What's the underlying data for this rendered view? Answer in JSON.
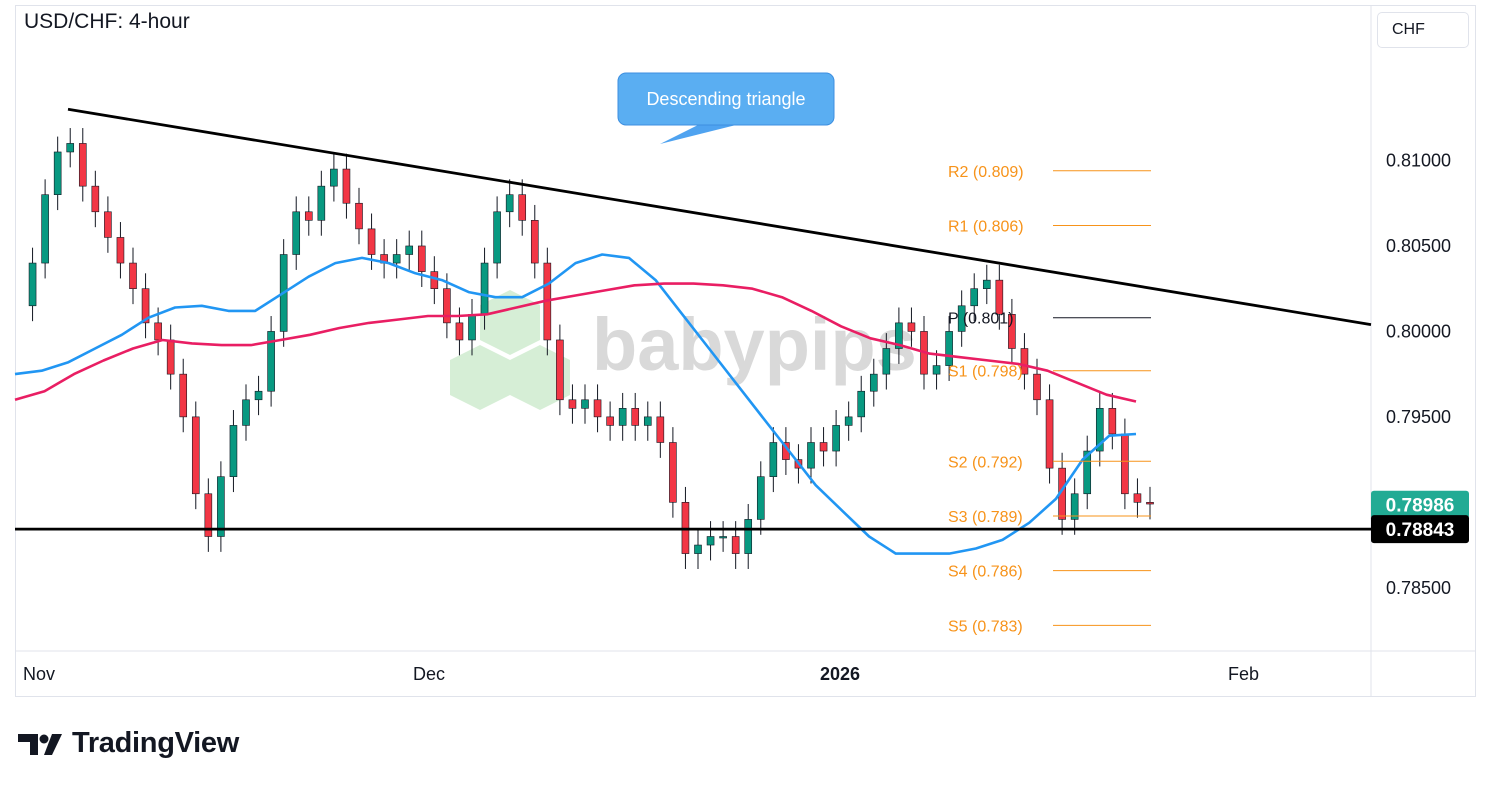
{
  "header": {
    "title": "USD/CHF: 4-hour",
    "currency": "CHF"
  },
  "watermark": {
    "text": "babypips"
  },
  "footer": {
    "brand": "TradingView"
  },
  "colors": {
    "up": "#089981",
    "down": "#f23645",
    "sma_blue": "#2196f3",
    "sma_pink": "#e91e63",
    "pivot": "#f7931a"
  },
  "chart_data": {
    "type": "candlestick",
    "y_ticks": [
      "0.81000",
      "0.80500",
      "0.80000",
      "0.79500",
      "0.78500"
    ],
    "y_tick_values": [
      0.81,
      0.805,
      0.8,
      0.795,
      0.785
    ],
    "ylim": [
      0.7813,
      0.8191
    ],
    "x_ticks": [
      {
        "label": "Nov",
        "bold": false
      },
      {
        "label": "Dec",
        "bold": false
      },
      {
        "label": "2026",
        "bold": true
      },
      {
        "label": "Feb",
        "bold": false
      }
    ],
    "price_labels": [
      {
        "text": "0.78986",
        "value": 0.78986,
        "color": "#22ab94"
      },
      {
        "text": "0.78843",
        "value": 0.78843,
        "color": "#000000"
      }
    ],
    "annotation": {
      "text": "Descending triangle"
    },
    "pivots": [
      {
        "label": "R2 (0.809)",
        "value": 0.8094,
        "color": "#f7931a"
      },
      {
        "label": "R1 (0.806)",
        "value": 0.8062,
        "color": "#f7931a"
      },
      {
        "label": "P (0.801)",
        "value": 0.8008,
        "color": "#131722"
      },
      {
        "label": "S1 (0.798)",
        "value": 0.7977,
        "color": "#f7931a"
      },
      {
        "label": "S2 (0.792)",
        "value": 0.7924,
        "color": "#f7931a"
      },
      {
        "label": "S3 (0.789)",
        "value": 0.7892,
        "color": "#f7931a"
      },
      {
        "label": "S4 (0.786)",
        "value": 0.786,
        "color": "#f7931a"
      },
      {
        "label": "S5 (0.783)",
        "value": 0.7828,
        "color": "#f7931a"
      }
    ],
    "trendline": [
      0.813,
      0.8004
    ],
    "support": 0.78843,
    "sma_blue": [
      0.7975,
      0.7977,
      0.7982,
      0.799,
      0.7998,
      0.8008,
      0.8014,
      0.8015,
      0.8012,
      0.8012,
      0.8022,
      0.8032,
      0.804,
      0.8043,
      0.804,
      0.8034,
      0.803,
      0.8023,
      0.802,
      0.802,
      0.8028,
      0.804,
      0.8045,
      0.8043,
      0.803,
      0.801,
      0.799,
      0.797,
      0.795,
      0.793,
      0.791,
      0.7895,
      0.788,
      0.787,
      0.787,
      0.787,
      0.7873,
      0.7878,
      0.7888,
      0.7902,
      0.7925,
      0.7939,
      0.794
    ],
    "sma_pink": [
      0.796,
      0.7965,
      0.7975,
      0.7983,
      0.799,
      0.7995,
      0.7993,
      0.7992,
      0.7992,
      0.7995,
      0.7998,
      0.8002,
      0.8005,
      0.8007,
      0.8009,
      0.8009,
      0.801,
      0.8014,
      0.8018,
      0.8021,
      0.8024,
      0.8027,
      0.8028,
      0.8028,
      0.8027,
      0.8025,
      0.802,
      0.8012,
      0.8003,
      0.7996,
      0.7992,
      0.7987,
      0.7985,
      0.7983,
      0.7981,
      0.7977,
      0.797,
      0.7963,
      0.7959
    ],
    "close": [
      0.8015,
      0.804,
      0.808,
      0.8105,
      0.811,
      0.8085,
      0.807,
      0.8055,
      0.804,
      0.8025,
      0.8005,
      0.7995,
      0.7975,
      0.795,
      0.7905,
      0.788,
      0.7915,
      0.7945,
      0.796,
      0.7965,
      0.8,
      0.8045,
      0.807,
      0.8065,
      0.8085,
      0.8095,
      0.8075,
      0.806,
      0.8045,
      0.804,
      0.8045,
      0.805,
      0.8035,
      0.8025,
      0.8005,
      0.7995,
      0.801,
      0.804,
      0.807,
      0.808,
      0.8065,
      0.804,
      0.7995,
      0.796,
      0.7955,
      0.796,
      0.795,
      0.7945,
      0.7955,
      0.7945,
      0.795,
      0.7935,
      0.79,
      0.787,
      0.7875,
      0.788,
      0.788,
      0.787,
      0.789,
      0.7915,
      0.7935,
      0.7925,
      0.792,
      0.7935,
      0.793,
      0.7945,
      0.795,
      0.7965,
      0.7975,
      0.799,
      0.8005,
      0.8,
      0.7975,
      0.798,
      0.8,
      0.8015,
      0.8025,
      0.803,
      0.801,
      0.799,
      0.7975,
      0.796,
      0.792,
      0.789,
      0.7905,
      0.793,
      0.7955,
      0.794,
      0.7905,
      0.79,
      0.7899
    ]
  }
}
